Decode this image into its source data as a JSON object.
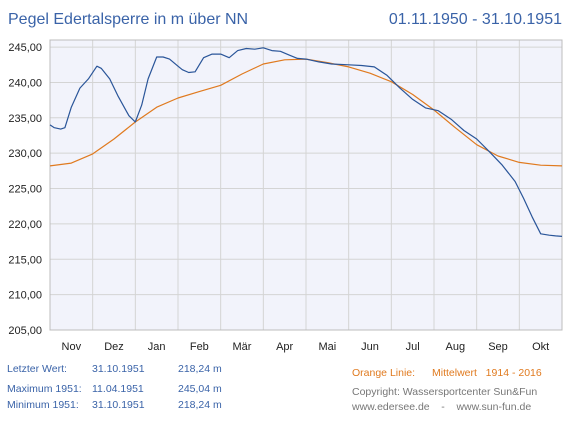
{
  "header": {
    "title": "Pegel Edertalsperre in m über NN",
    "date_range": "01.11.1950 - 31.10.1951"
  },
  "chart_data": {
    "type": "line",
    "months": [
      "Nov",
      "Dez",
      "Jan",
      "Feb",
      "Mär",
      "Apr",
      "Mai",
      "Jun",
      "Jul",
      "Aug",
      "Sep",
      "Okt"
    ],
    "y_ticks": [
      "245,00",
      "240,00",
      "235,00",
      "230,00",
      "225,00",
      "220,00",
      "215,00",
      "210,00",
      "205,00"
    ],
    "ylim": [
      205,
      246
    ],
    "xlim": [
      0,
      12
    ],
    "grid": true,
    "series": [
      {
        "name": "1951",
        "color": "#2a5599",
        "x": [
          0.0,
          0.1,
          0.25,
          0.35,
          0.5,
          0.7,
          0.9,
          1.1,
          1.2,
          1.4,
          1.6,
          1.85,
          2.0,
          2.15,
          2.3,
          2.5,
          2.65,
          2.8,
          3.0,
          3.1,
          3.25,
          3.4,
          3.6,
          3.8,
          4.0,
          4.2,
          4.4,
          4.6,
          4.8,
          5.0,
          5.2,
          5.4,
          5.6,
          5.8,
          6.0,
          6.3,
          6.6,
          7.0,
          7.3,
          7.6,
          7.9,
          8.2,
          8.5,
          8.8,
          9.1,
          9.4,
          9.7,
          10.0,
          10.3,
          10.6,
          10.9,
          11.1,
          11.3,
          11.5,
          11.7,
          11.85,
          12.0
        ],
        "y": [
          234.0,
          233.6,
          233.4,
          233.6,
          236.5,
          239.2,
          240.5,
          242.3,
          242.0,
          240.5,
          238.0,
          235.3,
          234.4,
          236.8,
          240.5,
          243.6,
          243.6,
          243.3,
          242.3,
          241.8,
          241.4,
          241.5,
          243.5,
          244.0,
          244.0,
          243.5,
          244.5,
          244.8,
          244.7,
          244.9,
          244.5,
          244.4,
          243.9,
          243.4,
          243.3,
          242.9,
          242.6,
          242.5,
          242.4,
          242.2,
          241.0,
          239.2,
          237.6,
          236.4,
          236.0,
          234.8,
          233.2,
          232.0,
          230.2,
          228.3,
          226.0,
          223.6,
          221.0,
          218.6,
          218.4,
          218.3,
          218.24
        ]
      },
      {
        "name": "Mittelwert",
        "color": "#e07a1f",
        "x": [
          0.0,
          0.5,
          1.0,
          1.5,
          2.0,
          2.5,
          3.0,
          3.5,
          4.0,
          4.5,
          5.0,
          5.5,
          6.0,
          6.5,
          7.0,
          7.5,
          8.0,
          8.5,
          9.0,
          9.5,
          10.0,
          10.5,
          11.0,
          11.5,
          12.0
        ],
        "y": [
          228.2,
          228.6,
          229.9,
          232.0,
          234.4,
          236.5,
          237.8,
          238.7,
          239.6,
          241.2,
          242.6,
          243.2,
          243.3,
          242.8,
          242.2,
          241.3,
          240.1,
          238.3,
          236.1,
          233.6,
          231.2,
          229.6,
          228.7,
          228.3,
          228.2
        ]
      }
    ]
  },
  "footer": {
    "last_label": "Letzter Wert:",
    "last_date": "31.10.1951",
    "last_value": "218,24 m",
    "max_label": "Maximum 1951:",
    "max_date": "11.04.1951",
    "max_value": "245,04 m",
    "min_label": "Minimum  1951:",
    "min_date": "31.10.1951",
    "min_value": "218,24 m",
    "orange_line_label": "Orange Linie:",
    "orange_line_desc": "Mittelwert   1914 - 2016",
    "copyright": "Copyright: Wassersportcenter Sun&Fun",
    "websites": "www.edersee.de    -    www.sun-fun.de"
  },
  "colors": {
    "title_blue": "#3a63a8",
    "plot_bg": "#f2f3fb",
    "grid": "#d4d4d4",
    "axis_text": "#222222"
  }
}
